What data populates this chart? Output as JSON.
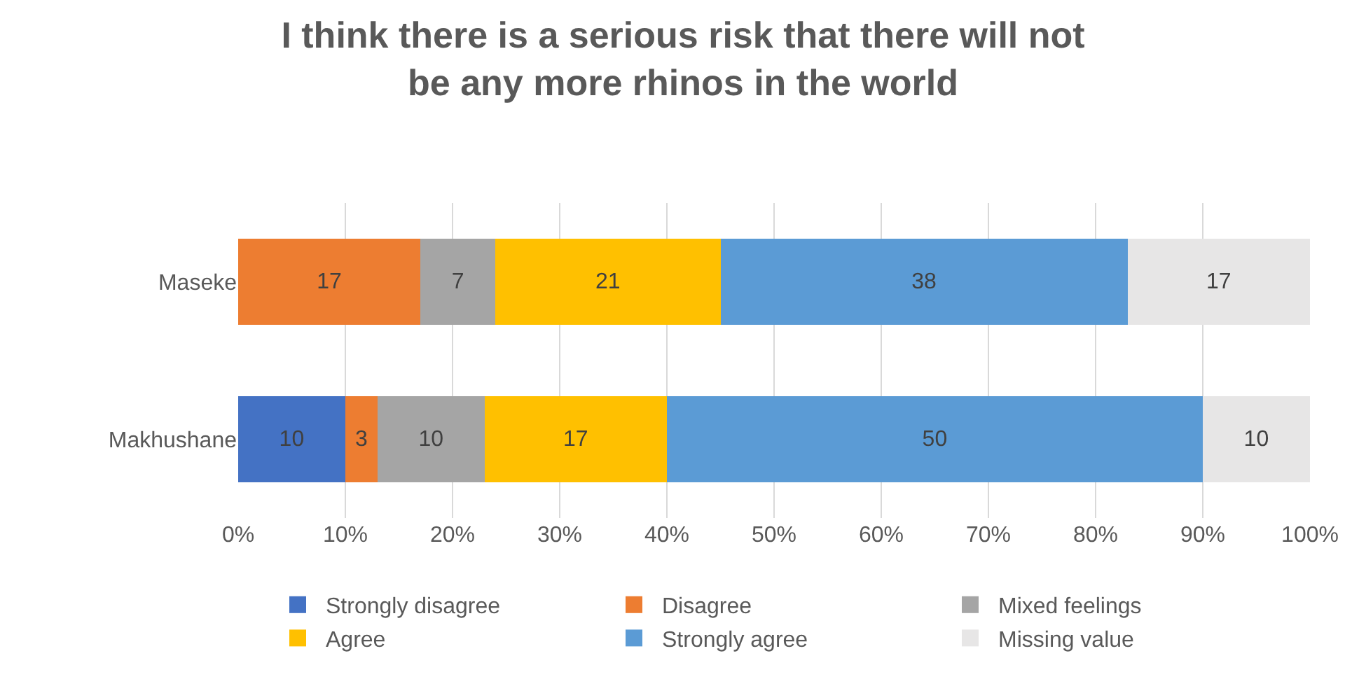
{
  "chart_data": {
    "type": "bar",
    "orientation": "horizontal",
    "stacked": true,
    "title": "I think there is a serious risk that there will not be any more rhinos in the world",
    "categories": [
      "Maseke",
      "Makhushane"
    ],
    "series": [
      {
        "name": "Strongly disagree",
        "color": "#4472c4",
        "values": [
          null,
          10
        ]
      },
      {
        "name": "Disagree",
        "color": "#ed7d31",
        "values": [
          17,
          3
        ]
      },
      {
        "name": "Mixed feelings",
        "color": "#a5a5a5",
        "values": [
          7,
          10
        ]
      },
      {
        "name": "Agree",
        "color": "#ffc000",
        "values": [
          21,
          17
        ]
      },
      {
        "name": "Strongly agree",
        "color": "#5b9bd5",
        "values": [
          38,
          50
        ]
      },
      {
        "name": "Missing value",
        "color": "#e7e6e6",
        "values": [
          17,
          10
        ]
      }
    ],
    "xlim": [
      0,
      100
    ],
    "xticks": [
      {
        "value": 0,
        "label": "0%"
      },
      {
        "value": 10,
        "label": "10%"
      },
      {
        "value": 20,
        "label": "20%"
      },
      {
        "value": 30,
        "label": "30%"
      },
      {
        "value": 40,
        "label": "40%"
      },
      {
        "value": 50,
        "label": "50%"
      },
      {
        "value": 60,
        "label": "60%"
      },
      {
        "value": 70,
        "label": "70%"
      },
      {
        "value": 80,
        "label": "80%"
      },
      {
        "value": 90,
        "label": "90%"
      },
      {
        "value": 100,
        "label": "100%"
      }
    ],
    "grid": "x",
    "legend": "bottom",
    "data_labels": true
  }
}
